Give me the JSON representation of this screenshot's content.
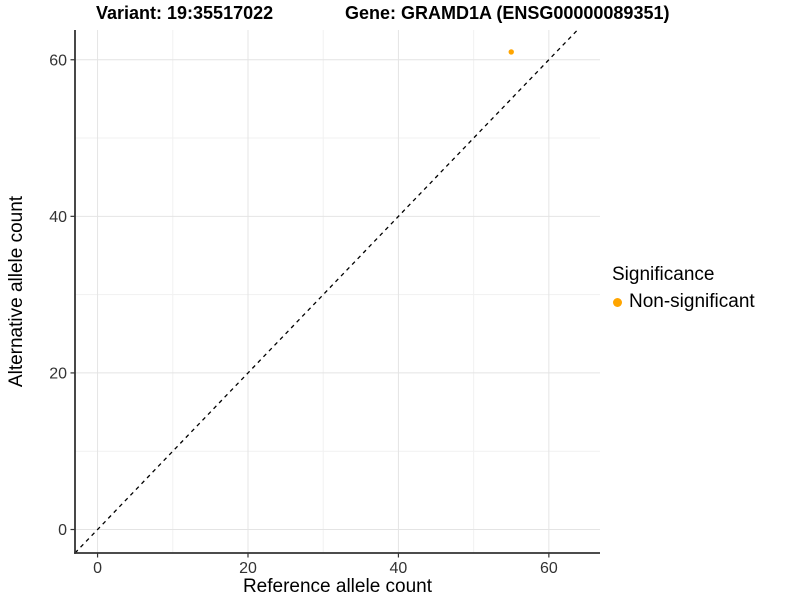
{
  "titles": {
    "variant": "Variant: 19:35517022",
    "gene": "Gene: GRAMD1A (ENSG00000089351)"
  },
  "chart_data": {
    "type": "scatter",
    "xlabel": "Reference allele count",
    "ylabel": "Alternative allele count",
    "x_ticks": [
      0,
      20,
      40,
      60
    ],
    "y_ticks": [
      0,
      20,
      40,
      60
    ],
    "x_minor_ticks": [
      10,
      30,
      50
    ],
    "y_minor_ticks": [
      10,
      30,
      50
    ],
    "xlim": [
      -3.0,
      66.8
    ],
    "ylim": [
      -3.0,
      63.8
    ],
    "grid": "on",
    "legend_position": "right",
    "points": [
      {
        "x": 55,
        "y": 61,
        "series": "Non-significant",
        "color": "#FFA500"
      }
    ],
    "reference_line": {
      "slope": 1,
      "intercept": 0,
      "style": "dashed",
      "color": "#000000"
    },
    "legend": {
      "title": "Significance",
      "items": [
        {
          "label": "Non-significant",
          "color": "#FFA500"
        }
      ]
    }
  },
  "colors": {
    "accent_orange": "#FFA500",
    "axis_line": "#333333",
    "tick_label": "#333333",
    "grid_major": "#e4e4e4",
    "grid_minor": "#f1f1f1",
    "background": "#ffffff"
  }
}
